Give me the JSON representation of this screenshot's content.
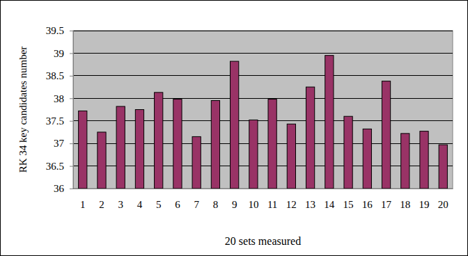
{
  "chart_data": {
    "type": "bar",
    "x_label": "20 sets measured",
    "y_label": "RK 34 key candidates number",
    "categories": [
      "1",
      "2",
      "3",
      "4",
      "5",
      "6",
      "7",
      "8",
      "9",
      "10",
      "11",
      "12",
      "13",
      "14",
      "15",
      "16",
      "17",
      "18",
      "19",
      "20"
    ],
    "values": [
      37.72,
      37.25,
      37.82,
      37.75,
      38.13,
      37.98,
      37.15,
      37.95,
      38.82,
      37.52,
      37.98,
      37.43,
      38.25,
      38.95,
      37.6,
      37.32,
      38.38,
      37.22,
      37.27,
      36.97
    ],
    "color": "#993366",
    "ylim": [
      36,
      39.5
    ],
    "yticks": [
      36,
      36.5,
      37,
      37.5,
      38,
      38.5,
      39,
      39.5
    ],
    "grid": true
  }
}
